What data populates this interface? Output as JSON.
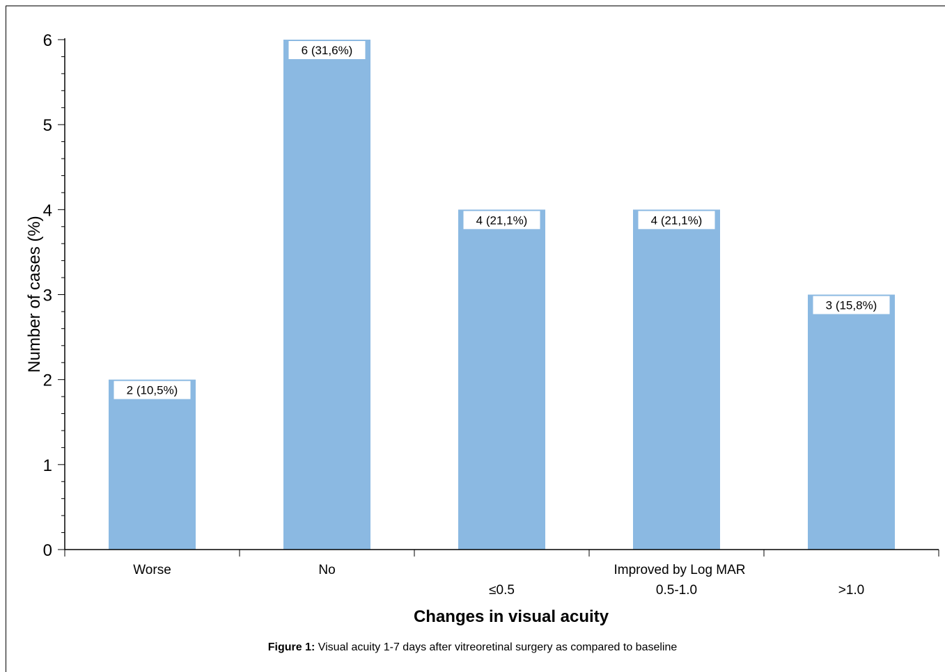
{
  "chart_data": {
    "type": "bar",
    "categories": [
      "Worse",
      "No",
      "≤0.5",
      "0.5-1.0",
      ">1.0"
    ],
    "values": [
      2,
      6,
      4,
      4,
      3
    ],
    "data_labels": [
      "2 (10,5%)",
      "6 (31,6%)",
      "4 (21,1%)",
      "4 (21,1%)",
      "3 (15,8%)"
    ],
    "group_label": "Improved by Log MAR",
    "ylabel": "Number of cases (%)",
    "xlabel": "Changes in visual acuity",
    "ylim": [
      0,
      6
    ],
    "yticks": [
      "0",
      "1",
      "2",
      "3",
      "4",
      "5",
      "6"
    ],
    "bar_color": "#8bb9e2",
    "grid": false
  },
  "caption": {
    "label": "Figure 1:",
    "text": " Visual acuity 1-7 days after vitreoretinal surgery as compared to baseline"
  }
}
